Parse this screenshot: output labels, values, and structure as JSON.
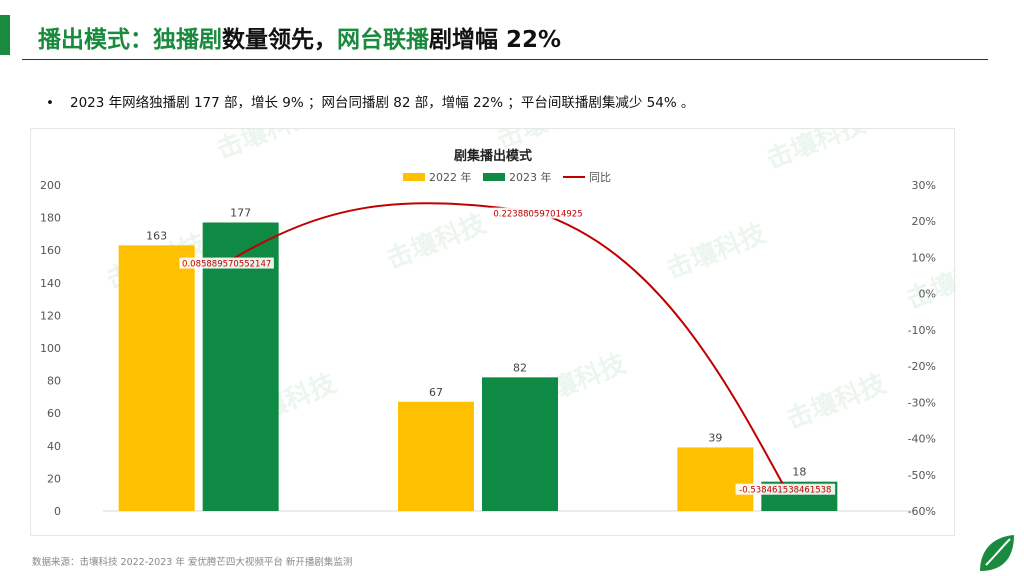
{
  "header": {
    "title_parts": [
      "播出模式：",
      "独播剧",
      "数量领先，",
      "网台联播",
      "剧增幅 22%"
    ]
  },
  "bullet": {
    "text": "2023 年网络独播剧 177 部，增长 9% ；网台同播剧 82 部，增幅 22% ；平台间联播剧集减少 54% 。"
  },
  "colors": {
    "accent_green": "#1a8a3e",
    "series_2022": "#ffc000",
    "series_2023": "#0e8a44",
    "yoy_line": "#c00000"
  },
  "watermark_text": "击壤科技",
  "chart_data": {
    "type": "bar",
    "title": "剧集播出模式",
    "categories": [
      "",
      "",
      ""
    ],
    "series": [
      {
        "name": "2022 年",
        "values": [
          163,
          67,
          39
        ]
      },
      {
        "name": "2023 年",
        "values": [
          177,
          82,
          18
        ]
      }
    ],
    "line_series": {
      "name": "同比",
      "values": [
        0.085889570552147,
        0.223880597014925,
        -0.538461538461538
      ],
      "labels": [
        "0.085889570552147",
        "0.223880597014925",
        "-0.538461538461538"
      ]
    },
    "y_left": {
      "min": 0,
      "max": 200,
      "step": 20,
      "ticks": [
        "0",
        "20",
        "40",
        "60",
        "80",
        "100",
        "120",
        "140",
        "160",
        "180",
        "200"
      ]
    },
    "y_right": {
      "min": -0.6,
      "max": 0.3,
      "ticks": [
        "-60%",
        "-50%",
        "-40%",
        "-30%",
        "-20%",
        "-10%",
        "0%",
        "10%",
        "20%",
        "30%"
      ]
    },
    "bar_labels": [
      [
        "163",
        "67",
        "39"
      ],
      [
        "177",
        "82",
        "18"
      ]
    ],
    "legend_position": "top-center",
    "grid": false
  },
  "footer": {
    "source": "数据来源：击壤科技  2022-2023 年 爱优腾芒四大视频平台 新开播剧集监测"
  }
}
